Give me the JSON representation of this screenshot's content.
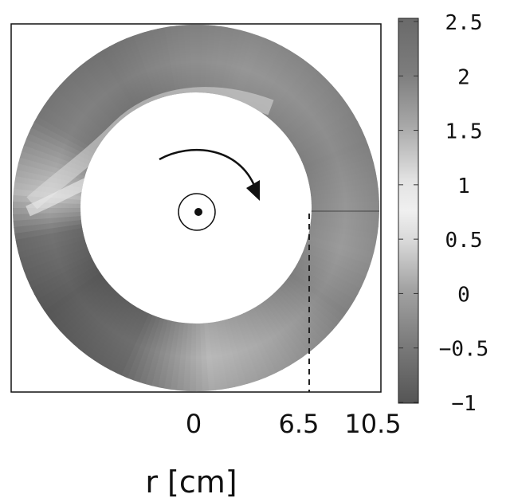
{
  "chart_data": {
    "type": "heatmap",
    "geometry": "annulus",
    "inner_radius_cm": 6.5,
    "outer_radius_cm": 10.5,
    "x_ticks": [
      "0",
      "6.5",
      "10.5"
    ],
    "xlabel": "r [cm]",
    "colorbar": {
      "ticks": [
        "2.5",
        "2",
        "1.5",
        "1",
        "0.5",
        "0",
        "−0.5",
        "−1"
      ],
      "range": [
        -1,
        2.5
      ],
      "colormap": "grayscale"
    },
    "annotations": {
      "rotation_arrow": "clockwise",
      "center_marker": "dot-in-circle",
      "dashed_line_at_r_cm": 6.5
    }
  },
  "colors": {
    "frame": "#111111",
    "background": "#ffffff",
    "colorbar_dark": "#555555",
    "colorbar_light": "#e8e8e8"
  }
}
